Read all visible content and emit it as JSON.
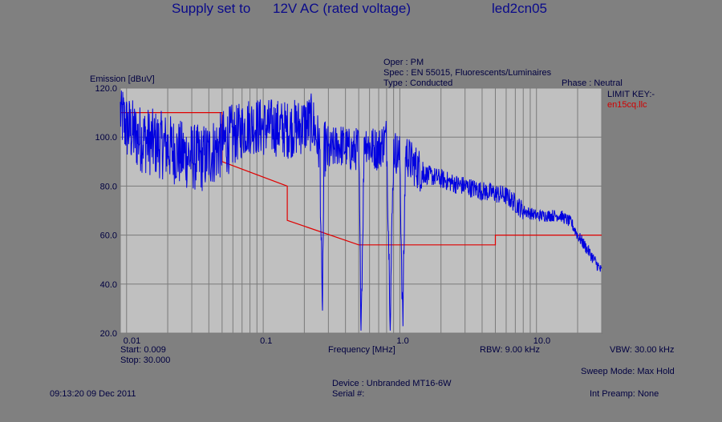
{
  "header": {
    "supply": "Supply set to",
    "voltage": "12V AC  (rated voltage)",
    "file": "led2cn05"
  },
  "info": {
    "oper": "Oper : PM",
    "spec": "Spec : EN 55015, Fluorescents/Luminaires",
    "type": "Type : Conducted",
    "phase": "Phase : Neutral"
  },
  "limit_key": {
    "label": "LIMIT KEY:-",
    "file": "en15cq.llc",
    "color": "#e00000"
  },
  "footer": {
    "start": "Start: 0.009",
    "stop": "Stop: 30.000",
    "rbw": "RBW: 9.00 kHz",
    "vbw": "VBW: 30.00 kHz",
    "sweep": "Sweep Mode: Max Hold",
    "timestamp": "09:13:20 09 Dec 2011",
    "device": "Device : Unbranded MT16-6W",
    "serial": "Serial #:",
    "preamp": "Int Preamp: None"
  },
  "chart_data": {
    "type": "line",
    "ylabel": "Emission [dBuV]",
    "xlabel": "Frequency [MHz]",
    "x_scale": "log",
    "xlim": [
      0.009,
      30.0
    ],
    "ylim": [
      20,
      120
    ],
    "yticks": [
      120,
      100,
      80,
      60,
      40,
      20
    ],
    "ytick_labels": [
      "120.0",
      "100.0",
      "80.0",
      "60.0",
      "40.0",
      "20.0"
    ],
    "xticks": [
      0.01,
      0.1,
      1.0,
      10.0
    ],
    "xtick_labels": [
      "0.01",
      "0.1",
      "1.0",
      "10.0"
    ],
    "grid": true,
    "plot_bg": "#c0c0c0",
    "series": [
      {
        "color": "#0000e0",
        "x": [
          0.009,
          0.01,
          0.012,
          0.015,
          0.02,
          0.025,
          0.03,
          0.035,
          0.04,
          0.045,
          0.05,
          0.06,
          0.07,
          0.08,
          0.1,
          0.12,
          0.15,
          0.18,
          0.2,
          0.23,
          0.26,
          0.27,
          0.28,
          0.3,
          0.35,
          0.4,
          0.45,
          0.5,
          0.52,
          0.55,
          0.6,
          0.7,
          0.8,
          0.85,
          0.9,
          1.0,
          1.05,
          1.1,
          1.2,
          1.5,
          2.0,
          2.5,
          3.0,
          4.0,
          5.0,
          6.0,
          7.0,
          8.0,
          10.0,
          12.0,
          15.0,
          18.0,
          20.0,
          25.0,
          30.0
        ],
        "y": [
          110,
          104,
          100,
          98,
          96,
          93,
          92,
          91,
          93,
          95,
          97,
          100,
          103,
          105,
          104,
          104,
          103,
          104,
          105,
          106,
          95,
          26,
          96,
          93,
          97,
          96,
          94,
          96,
          23,
          100,
          96,
          95,
          100,
          28,
          95,
          92,
          22,
          94,
          90,
          85,
          83,
          81,
          80,
          78,
          77,
          76,
          73,
          70,
          68,
          68,
          68,
          65,
          60,
          52,
          45
        ]
      }
    ],
    "limit_line": {
      "color": "#e00000",
      "x": [
        0.009,
        0.05,
        0.05,
        0.15,
        0.15,
        0.5,
        5.0,
        5.0,
        30.0
      ],
      "y": [
        110,
        110,
        90,
        80,
        66,
        56,
        56,
        60,
        60
      ]
    }
  }
}
